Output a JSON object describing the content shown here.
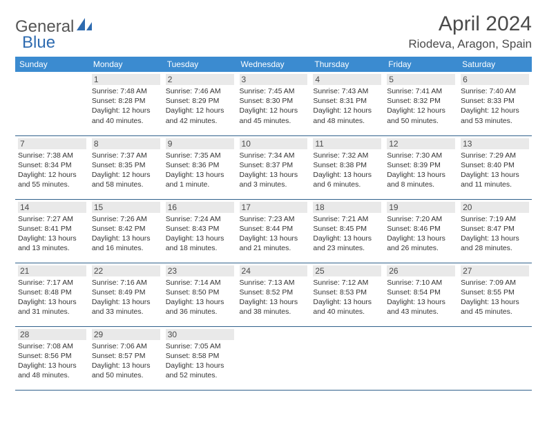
{
  "brand": {
    "part1": "General",
    "part2": "Blue",
    "color1": "#6a6a6a",
    "color2": "#2e6bb0",
    "icon_color": "#2e6bb0"
  },
  "title": "April 2024",
  "location": "Riodeva, Aragon, Spain",
  "header_bg": "#3b8bd0",
  "header_text": "#ffffff",
  "row_border": "#2e5f8a",
  "daynum_bg": "#e9e9e9",
  "weekdays": [
    "Sunday",
    "Monday",
    "Tuesday",
    "Wednesday",
    "Thursday",
    "Friday",
    "Saturday"
  ],
  "start_offset": 1,
  "days": [
    {
      "n": 1,
      "sr": "7:48 AM",
      "ss": "8:28 PM",
      "dl": "12 hours and 40 minutes."
    },
    {
      "n": 2,
      "sr": "7:46 AM",
      "ss": "8:29 PM",
      "dl": "12 hours and 42 minutes."
    },
    {
      "n": 3,
      "sr": "7:45 AM",
      "ss": "8:30 PM",
      "dl": "12 hours and 45 minutes."
    },
    {
      "n": 4,
      "sr": "7:43 AM",
      "ss": "8:31 PM",
      "dl": "12 hours and 48 minutes."
    },
    {
      "n": 5,
      "sr": "7:41 AM",
      "ss": "8:32 PM",
      "dl": "12 hours and 50 minutes."
    },
    {
      "n": 6,
      "sr": "7:40 AM",
      "ss": "8:33 PM",
      "dl": "12 hours and 53 minutes."
    },
    {
      "n": 7,
      "sr": "7:38 AM",
      "ss": "8:34 PM",
      "dl": "12 hours and 55 minutes."
    },
    {
      "n": 8,
      "sr": "7:37 AM",
      "ss": "8:35 PM",
      "dl": "12 hours and 58 minutes."
    },
    {
      "n": 9,
      "sr": "7:35 AM",
      "ss": "8:36 PM",
      "dl": "13 hours and 1 minute."
    },
    {
      "n": 10,
      "sr": "7:34 AM",
      "ss": "8:37 PM",
      "dl": "13 hours and 3 minutes."
    },
    {
      "n": 11,
      "sr": "7:32 AM",
      "ss": "8:38 PM",
      "dl": "13 hours and 6 minutes."
    },
    {
      "n": 12,
      "sr": "7:30 AM",
      "ss": "8:39 PM",
      "dl": "13 hours and 8 minutes."
    },
    {
      "n": 13,
      "sr": "7:29 AM",
      "ss": "8:40 PM",
      "dl": "13 hours and 11 minutes."
    },
    {
      "n": 14,
      "sr": "7:27 AM",
      "ss": "8:41 PM",
      "dl": "13 hours and 13 minutes."
    },
    {
      "n": 15,
      "sr": "7:26 AM",
      "ss": "8:42 PM",
      "dl": "13 hours and 16 minutes."
    },
    {
      "n": 16,
      "sr": "7:24 AM",
      "ss": "8:43 PM",
      "dl": "13 hours and 18 minutes."
    },
    {
      "n": 17,
      "sr": "7:23 AM",
      "ss": "8:44 PM",
      "dl": "13 hours and 21 minutes."
    },
    {
      "n": 18,
      "sr": "7:21 AM",
      "ss": "8:45 PM",
      "dl": "13 hours and 23 minutes."
    },
    {
      "n": 19,
      "sr": "7:20 AM",
      "ss": "8:46 PM",
      "dl": "13 hours and 26 minutes."
    },
    {
      "n": 20,
      "sr": "7:19 AM",
      "ss": "8:47 PM",
      "dl": "13 hours and 28 minutes."
    },
    {
      "n": 21,
      "sr": "7:17 AM",
      "ss": "8:48 PM",
      "dl": "13 hours and 31 minutes."
    },
    {
      "n": 22,
      "sr": "7:16 AM",
      "ss": "8:49 PM",
      "dl": "13 hours and 33 minutes."
    },
    {
      "n": 23,
      "sr": "7:14 AM",
      "ss": "8:50 PM",
      "dl": "13 hours and 36 minutes."
    },
    {
      "n": 24,
      "sr": "7:13 AM",
      "ss": "8:52 PM",
      "dl": "13 hours and 38 minutes."
    },
    {
      "n": 25,
      "sr": "7:12 AM",
      "ss": "8:53 PM",
      "dl": "13 hours and 40 minutes."
    },
    {
      "n": 26,
      "sr": "7:10 AM",
      "ss": "8:54 PM",
      "dl": "13 hours and 43 minutes."
    },
    {
      "n": 27,
      "sr": "7:09 AM",
      "ss": "8:55 PM",
      "dl": "13 hours and 45 minutes."
    },
    {
      "n": 28,
      "sr": "7:08 AM",
      "ss": "8:56 PM",
      "dl": "13 hours and 48 minutes."
    },
    {
      "n": 29,
      "sr": "7:06 AM",
      "ss": "8:57 PM",
      "dl": "13 hours and 50 minutes."
    },
    {
      "n": 30,
      "sr": "7:05 AM",
      "ss": "8:58 PM",
      "dl": "13 hours and 52 minutes."
    }
  ],
  "labels": {
    "sunrise": "Sunrise:",
    "sunset": "Sunset:",
    "daylight": "Daylight:"
  }
}
